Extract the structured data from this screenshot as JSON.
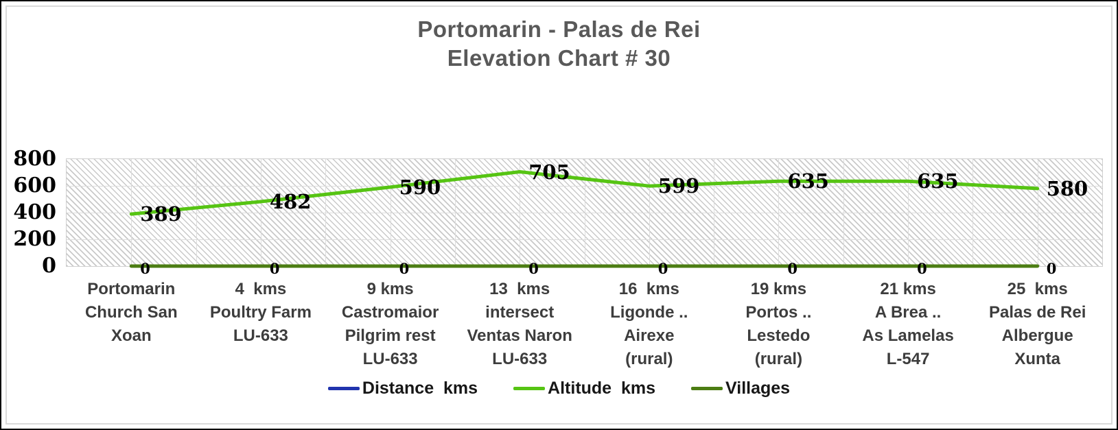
{
  "title": {
    "line1": "Portomarin - Palas de Rei",
    "line2": "Elevation Chart # 30"
  },
  "chart_data": {
    "type": "line",
    "title": "Portomarin - Palas de Rei Elevation Chart # 30",
    "categories": [
      "Portomarin\nChurch San\nXoan",
      "4  kms\nPoultry Farm\nLU-633",
      "9 kms\nCastromaior\nPilgrim rest\nLU-633",
      "13  kms\nintersect\nVentas Naron\nLU-633",
      "16  kms\nLigonde ..\nAirexe\n(rural)",
      "19 kms\nPortos ..\nLestedo\n(rural)",
      "21 kms\nA Brea ..\nAs Lamelas\nL-547",
      "25  kms\nPalas de Rei\nAlbergue\nXunta"
    ],
    "series": [
      {
        "name": "Distance  kms",
        "color": "#2134ae",
        "stroke_width": 3.5,
        "values": [
          0,
          0,
          0,
          0,
          0,
          0,
          0,
          0
        ],
        "value_labels": "none"
      },
      {
        "name": "Altitude  kms",
        "color": "#56c413",
        "stroke_width": 5,
        "values": [
          389,
          482,
          590,
          705,
          599,
          635,
          635,
          580
        ],
        "value_labels": "right-large"
      },
      {
        "name": "Villages",
        "color": "#4c7d13",
        "stroke_width": 5,
        "values": [
          0,
          0,
          0,
          0,
          0,
          0,
          0,
          0
        ],
        "value_labels": "right-small"
      }
    ],
    "ylim": [
      0,
      800
    ],
    "yticks": [
      0,
      200,
      400,
      600,
      800
    ],
    "grid": true,
    "legend_position": "bottom",
    "plot_area_fill": "diagonal-hatch"
  }
}
